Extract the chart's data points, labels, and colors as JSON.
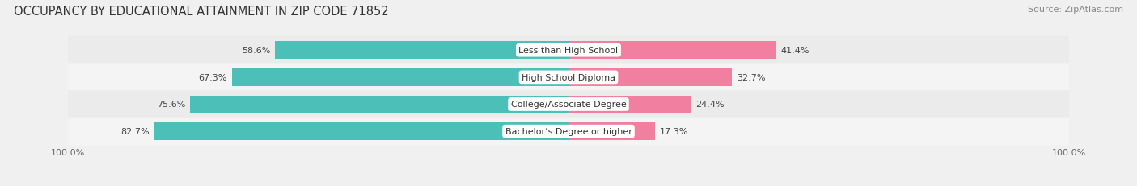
{
  "title": "OCCUPANCY BY EDUCATIONAL ATTAINMENT IN ZIP CODE 71852",
  "source": "Source: ZipAtlas.com",
  "categories": [
    "Less than High School",
    "High School Diploma",
    "College/Associate Degree",
    "Bachelor’s Degree or higher"
  ],
  "owner_values": [
    58.6,
    67.3,
    75.6,
    82.7
  ],
  "renter_values": [
    41.4,
    32.7,
    24.4,
    17.3
  ],
  "owner_color": "#4BBFB8",
  "renter_color": "#F07FA0",
  "row_bg_colors": [
    "#EBEBEB",
    "#F4F4F4",
    "#EBEBEB",
    "#F4F4F4"
  ],
  "axis_max": 100.0,
  "title_fontsize": 10.5,
  "source_fontsize": 8,
  "value_fontsize": 8,
  "category_fontsize": 8,
  "legend_fontsize": 8.5,
  "axis_label_fontsize": 8,
  "background_color": "#F0F0F0"
}
